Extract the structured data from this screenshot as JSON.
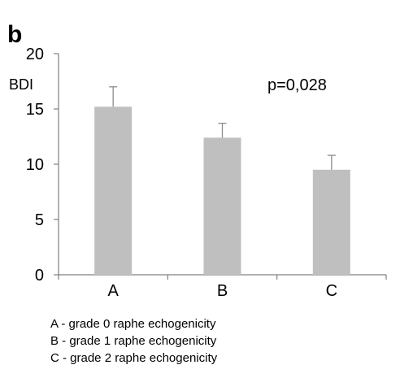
{
  "chart_data": {
    "type": "bar",
    "panel_label": "b",
    "categories": [
      "A",
      "B",
      "C"
    ],
    "values": [
      15.2,
      12.4,
      9.5
    ],
    "error_plus": [
      1.8,
      1.3,
      1.3
    ],
    "ylabel": "BDI",
    "ylim": [
      0,
      20
    ],
    "yticks": [
      0,
      5,
      10,
      15,
      20
    ],
    "annotation": "p=0,028",
    "bar_color": "#bfbfbf",
    "grid": false,
    "legend": [
      "A -  grade 0 raphe echogenicity",
      "B -  grade 1 raphe echogenicity",
      "C  - grade 2 raphe echogenicity"
    ]
  }
}
